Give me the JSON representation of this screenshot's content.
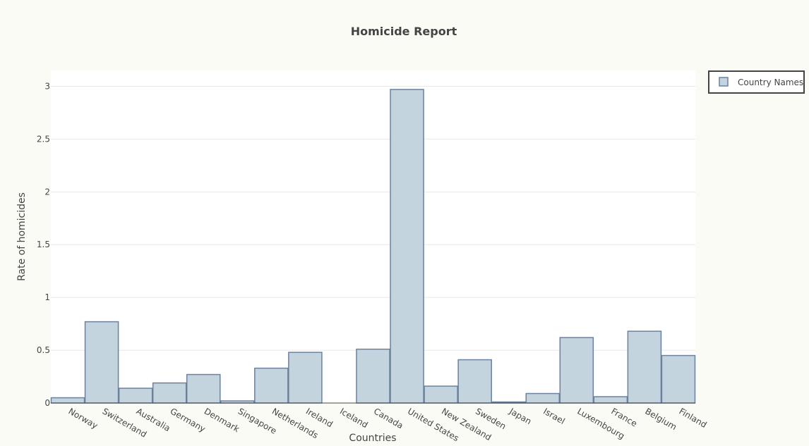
{
  "chart_data": {
    "type": "bar",
    "title": "Homicide Report",
    "xlabel": "Countries",
    "ylabel": "Rate of homicides",
    "ylim": [
      0,
      3.15
    ],
    "yticks": [
      0,
      0.5,
      1,
      1.5,
      2,
      2.5,
      3
    ],
    "grid": true,
    "legend_position": "top-right",
    "series": [
      {
        "name": "Country Names",
        "values": [
          0.05,
          0.77,
          0.14,
          0.19,
          0.27,
          0.02,
          0.33,
          0.48,
          0,
          0.51,
          2.97,
          0.16,
          0.41,
          0.01,
          0.09,
          0.62,
          0.06,
          0.68,
          0.45
        ]
      }
    ],
    "categories": [
      "Norway",
      "Switzerland",
      "Australia",
      "Germany",
      "Denmark",
      "Singapore",
      "Netherlands",
      "Ireland",
      "Iceland",
      "Canada",
      "United States",
      "New Zealand",
      "Sweden",
      "Japan",
      "Israel",
      "Luxembourg",
      "France",
      "Belgium",
      "Finland"
    ]
  },
  "colors": {
    "bar_fill": "#c3d4df",
    "bar_stroke": "#6b819e",
    "plot_bg": "#ffffff",
    "page_bg": "#fbfbf6",
    "grid": "#e8e8e8",
    "legend_border": "#444444"
  }
}
